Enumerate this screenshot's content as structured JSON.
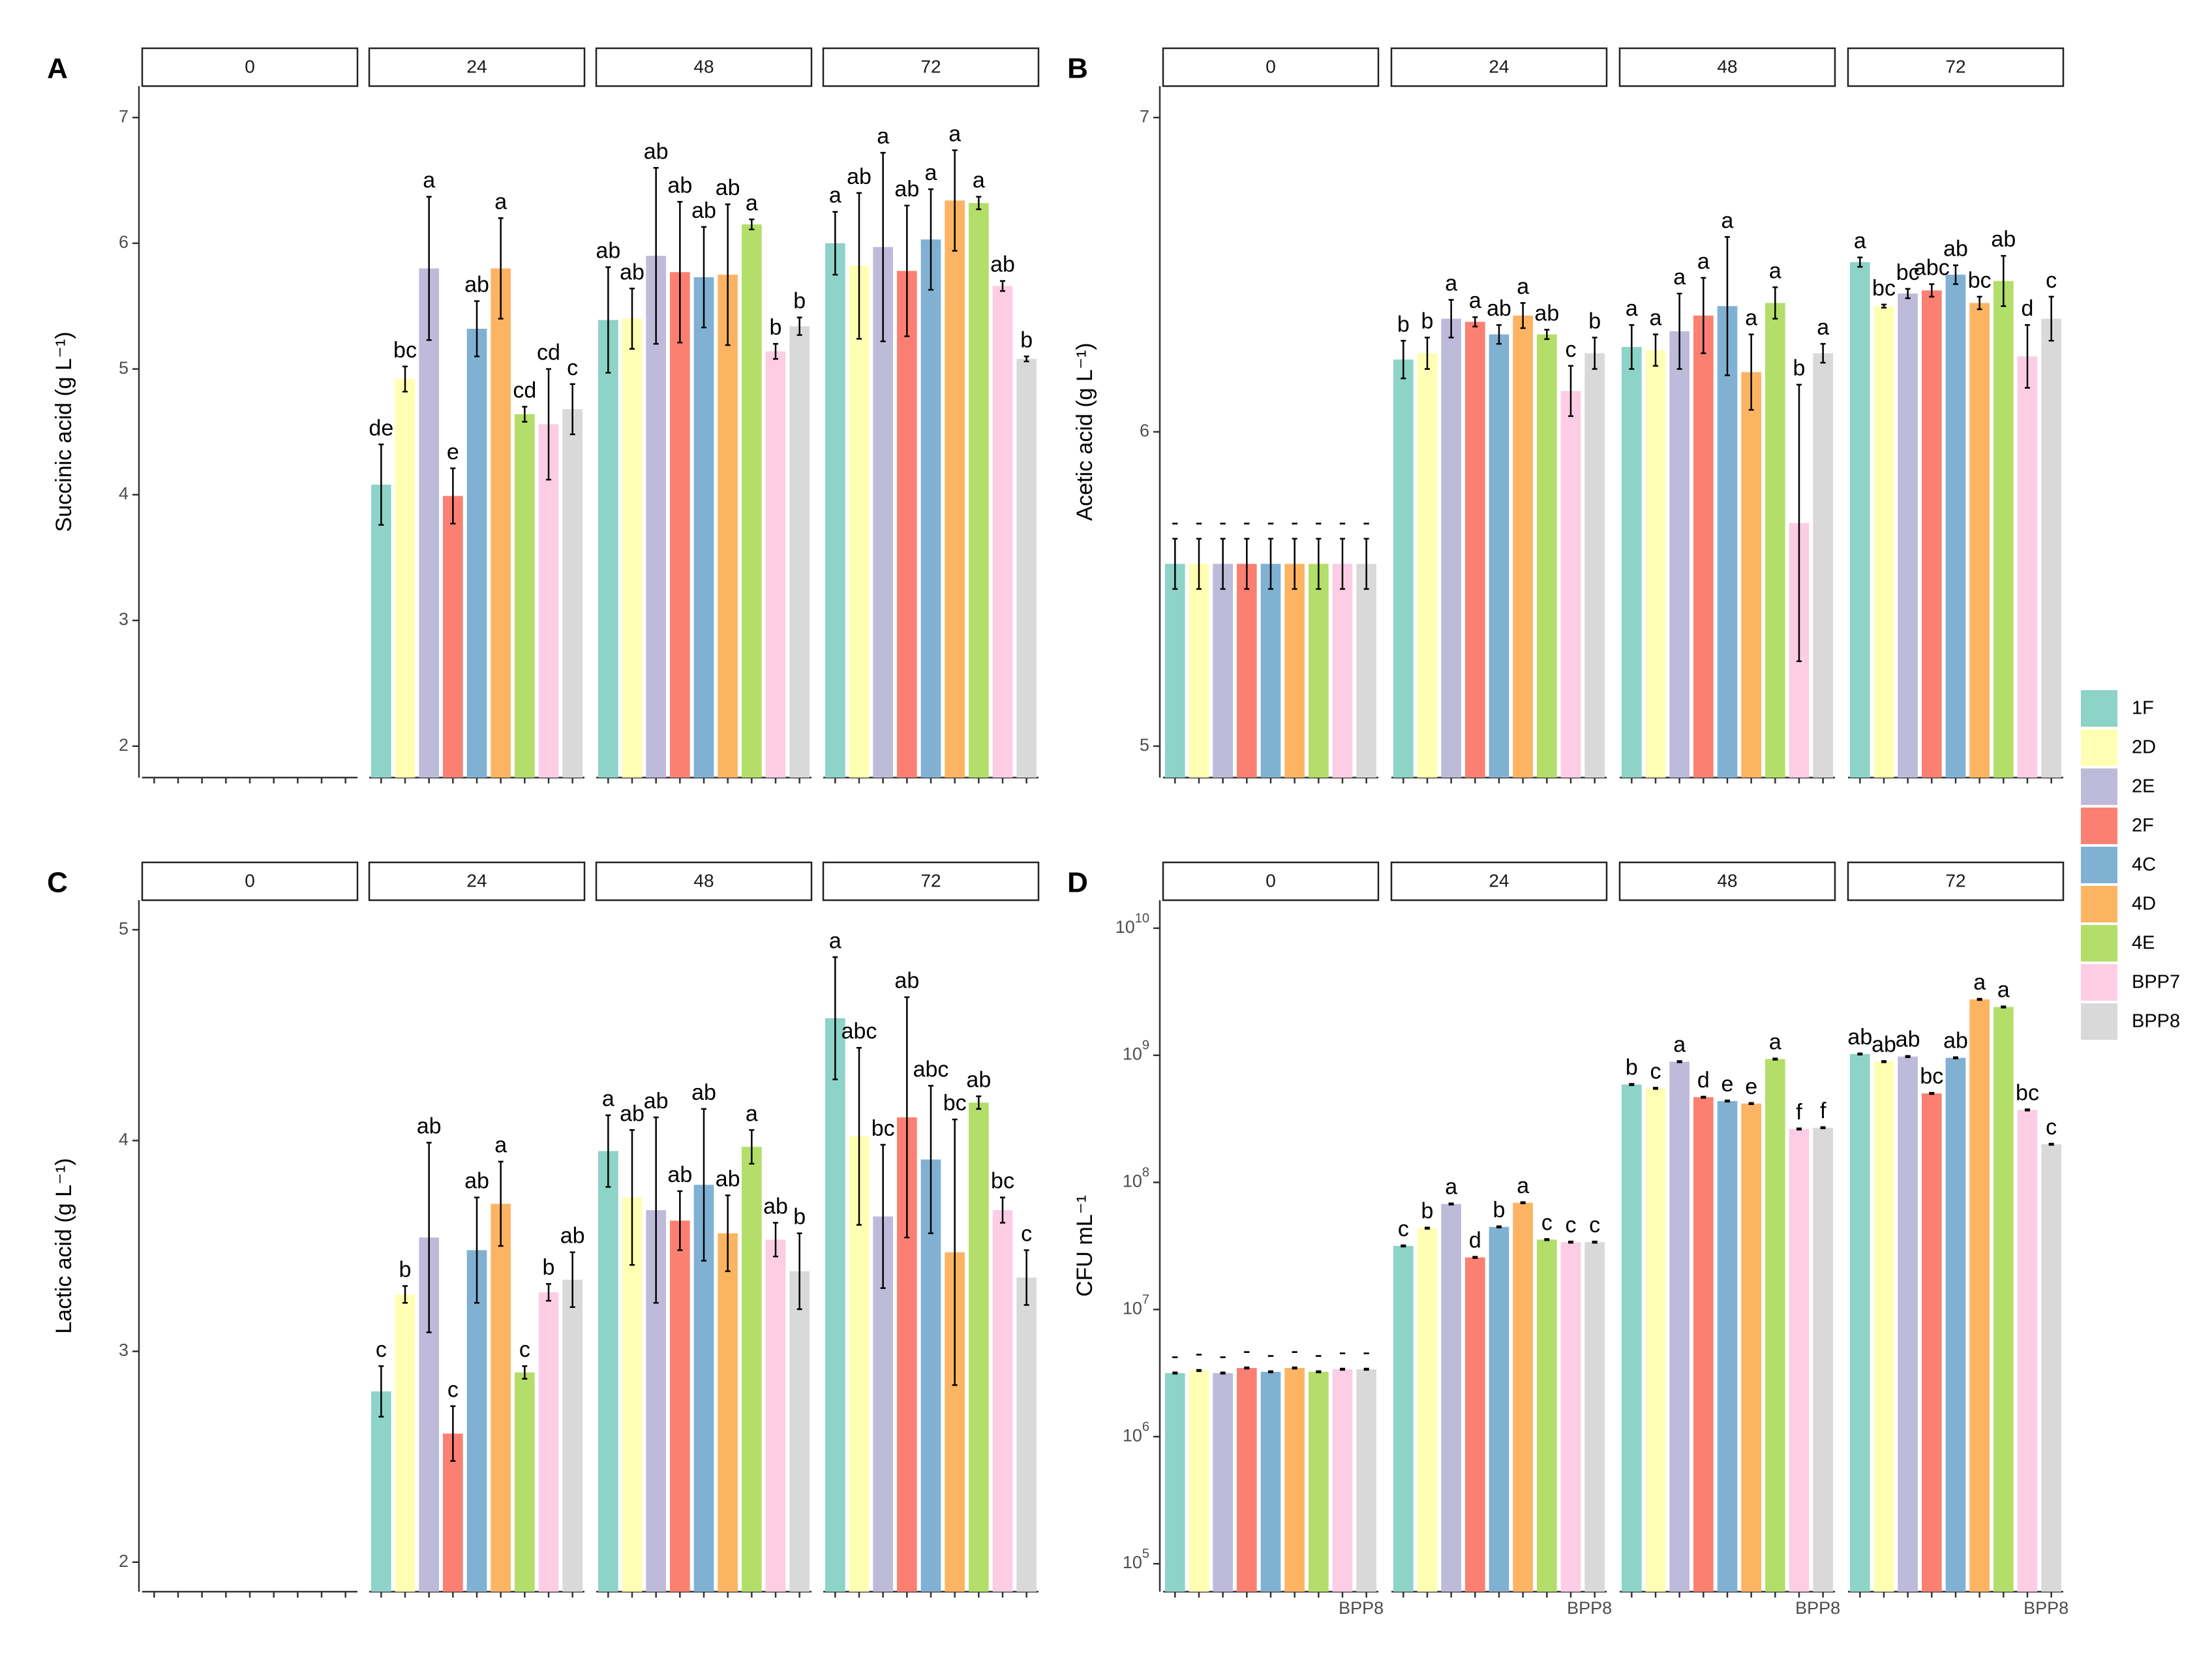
{
  "chart_data": [
    {
      "id": "A",
      "type": "bar",
      "panel_label": "A",
      "ylabel": "Succinic acid (g L⁻¹)",
      "scale": "linear",
      "ylim": [
        1.75,
        7.25
      ],
      "yticks": [
        2,
        3,
        4,
        5,
        6,
        7
      ],
      "ytick_labels": [
        "2",
        "3",
        "4",
        "5",
        "6",
        "7"
      ],
      "facets": [
        "0",
        "24",
        "48",
        "72"
      ],
      "categories": [
        "1F",
        "2D",
        "2E",
        "2F",
        "4C",
        "4D",
        "4E",
        "BPP7",
        "BPP8"
      ],
      "x_labels": [],
      "data": {
        "0": [],
        "24": [
          {
            "v": 4.08,
            "e": 0.32,
            "l": "de"
          },
          {
            "v": 4.92,
            "e": 0.1,
            "l": "bc"
          },
          {
            "v": 5.8,
            "e": 0.57,
            "l": "a"
          },
          {
            "v": 3.99,
            "e": 0.22,
            "l": "e"
          },
          {
            "v": 5.32,
            "e": 0.22,
            "l": "ab"
          },
          {
            "v": 5.8,
            "e": 0.4,
            "l": "a"
          },
          {
            "v": 4.64,
            "e": 0.06,
            "l": "cd"
          },
          {
            "v": 4.56,
            "e": 0.44,
            "l": "cd"
          },
          {
            "v": 4.68,
            "e": 0.2,
            "l": "c"
          }
        ],
        "48": [
          {
            "v": 5.39,
            "e": 0.42,
            "l": "ab"
          },
          {
            "v": 5.4,
            "e": 0.24,
            "l": "ab"
          },
          {
            "v": 5.9,
            "e": 0.7,
            "l": "ab"
          },
          {
            "v": 5.77,
            "e": 0.56,
            "l": "ab"
          },
          {
            "v": 5.73,
            "e": 0.4,
            "l": "ab"
          },
          {
            "v": 5.75,
            "e": 0.56,
            "l": "ab"
          },
          {
            "v": 6.15,
            "e": 0.04,
            "l": "a"
          },
          {
            "v": 5.14,
            "e": 0.06,
            "l": "b"
          },
          {
            "v": 5.34,
            "e": 0.07,
            "l": "b"
          }
        ],
        "72": [
          {
            "v": 6.0,
            "e": 0.25,
            "l": "a"
          },
          {
            "v": 5.82,
            "e": 0.58,
            "l": "ab"
          },
          {
            "v": 5.97,
            "e": 0.75,
            "l": "a"
          },
          {
            "v": 5.78,
            "e": 0.52,
            "l": "ab"
          },
          {
            "v": 6.03,
            "e": 0.4,
            "l": "a"
          },
          {
            "v": 6.34,
            "e": 0.4,
            "l": "a"
          },
          {
            "v": 6.32,
            "e": 0.05,
            "l": "a"
          },
          {
            "v": 5.66,
            "e": 0.04,
            "l": "ab"
          },
          {
            "v": 5.08,
            "e": 0.02,
            "l": "b"
          }
        ]
      }
    },
    {
      "id": "B",
      "type": "bar",
      "panel_label": "B",
      "ylabel": "Acetic acid (g L⁻¹)",
      "scale": "linear",
      "ylim": [
        4.9,
        7.1
      ],
      "yticks": [
        5,
        6,
        7
      ],
      "ytick_labels": [
        "5",
        "6",
        "7"
      ],
      "facets": [
        "0",
        "24",
        "48",
        "72"
      ],
      "categories": [
        "1F",
        "2D",
        "2E",
        "2F",
        "4C",
        "4D",
        "4E",
        "BPP7",
        "BPP8"
      ],
      "x_labels": [],
      "data": {
        "0": [
          {
            "v": 5.58,
            "e": 0.08,
            "l": "-"
          },
          {
            "v": 5.58,
            "e": 0.08,
            "l": "-"
          },
          {
            "v": 5.58,
            "e": 0.08,
            "l": "-"
          },
          {
            "v": 5.58,
            "e": 0.08,
            "l": "-"
          },
          {
            "v": 5.58,
            "e": 0.08,
            "l": "-"
          },
          {
            "v": 5.58,
            "e": 0.08,
            "l": "-"
          },
          {
            "v": 5.58,
            "e": 0.08,
            "l": "-"
          },
          {
            "v": 5.58,
            "e": 0.08,
            "l": "-"
          },
          {
            "v": 5.58,
            "e": 0.08,
            "l": "-"
          }
        ],
        "24": [
          {
            "v": 6.23,
            "e": 0.06,
            "l": "b"
          },
          {
            "v": 6.25,
            "e": 0.05,
            "l": "b"
          },
          {
            "v": 6.36,
            "e": 0.06,
            "l": "a"
          },
          {
            "v": 6.35,
            "e": 0.015,
            "l": "a"
          },
          {
            "v": 6.31,
            "e": 0.03,
            "l": "ab"
          },
          {
            "v": 6.37,
            "e": 0.04,
            "l": "a"
          },
          {
            "v": 6.31,
            "e": 0.015,
            "l": "ab"
          },
          {
            "v": 6.13,
            "e": 0.08,
            "l": "c"
          },
          {
            "v": 6.25,
            "e": 0.05,
            "l": "b"
          }
        ],
        "48": [
          {
            "v": 6.27,
            "e": 0.07,
            "l": "a"
          },
          {
            "v": 6.26,
            "e": 0.05,
            "l": "a"
          },
          {
            "v": 6.32,
            "e": 0.12,
            "l": "a"
          },
          {
            "v": 6.37,
            "e": 0.12,
            "l": "a"
          },
          {
            "v": 6.4,
            "e": 0.22,
            "l": "a"
          },
          {
            "v": 6.19,
            "e": 0.12,
            "l": "a"
          },
          {
            "v": 6.41,
            "e": 0.05,
            "l": "a"
          },
          {
            "v": 5.71,
            "e": 0.44,
            "l": "b"
          },
          {
            "v": 6.25,
            "e": 0.03,
            "l": "a"
          }
        ],
        "72": [
          {
            "v": 6.54,
            "e": 0.015,
            "l": "a"
          },
          {
            "v": 6.4,
            "e": 0.005,
            "l": "bc"
          },
          {
            "v": 6.44,
            "e": 0.015,
            "l": "bc"
          },
          {
            "v": 6.45,
            "e": 0.02,
            "l": "abc"
          },
          {
            "v": 6.5,
            "e": 0.03,
            "l": "ab"
          },
          {
            "v": 6.41,
            "e": 0.02,
            "l": "bc"
          },
          {
            "v": 6.48,
            "e": 0.08,
            "l": "ab"
          },
          {
            "v": 6.24,
            "e": 0.1,
            "l": "d"
          },
          {
            "v": 6.36,
            "e": 0.07,
            "l": "c"
          }
        ]
      }
    },
    {
      "id": "C",
      "type": "bar",
      "panel_label": "C",
      "ylabel": "Lactic acid (g L⁻¹)",
      "scale": "linear",
      "ylim": [
        1.86,
        5.14
      ],
      "yticks": [
        2,
        3,
        4,
        5
      ],
      "ytick_labels": [
        "2",
        "3",
        "4",
        "5"
      ],
      "facets": [
        "0",
        "24",
        "48",
        "72"
      ],
      "categories": [
        "1F",
        "2D",
        "2E",
        "2F",
        "4C",
        "4D",
        "4E",
        "BPP7",
        "BPP8"
      ],
      "x_labels": [],
      "data": {
        "0": [],
        "24": [
          {
            "v": 2.81,
            "e": 0.12,
            "l": "c"
          },
          {
            "v": 3.27,
            "e": 0.04,
            "l": "b"
          },
          {
            "v": 3.54,
            "e": 0.45,
            "l": "ab"
          },
          {
            "v": 2.61,
            "e": 0.13,
            "l": "c"
          },
          {
            "v": 3.48,
            "e": 0.25,
            "l": "ab"
          },
          {
            "v": 3.7,
            "e": 0.2,
            "l": "a"
          },
          {
            "v": 2.9,
            "e": 0.03,
            "l": "c"
          },
          {
            "v": 3.28,
            "e": 0.04,
            "l": "b"
          },
          {
            "v": 3.34,
            "e": 0.13,
            "l": "ab"
          }
        ],
        "48": [
          {
            "v": 3.95,
            "e": 0.17,
            "l": "a"
          },
          {
            "v": 3.73,
            "e": 0.32,
            "l": "ab"
          },
          {
            "v": 3.67,
            "e": 0.44,
            "l": "ab"
          },
          {
            "v": 3.62,
            "e": 0.14,
            "l": "ab"
          },
          {
            "v": 3.79,
            "e": 0.36,
            "l": "ab"
          },
          {
            "v": 3.56,
            "e": 0.18,
            "l": "ab"
          },
          {
            "v": 3.97,
            "e": 0.08,
            "l": "a"
          },
          {
            "v": 3.53,
            "e": 0.08,
            "l": "ab"
          },
          {
            "v": 3.38,
            "e": 0.18,
            "l": "b"
          }
        ],
        "72": [
          {
            "v": 4.58,
            "e": 0.29,
            "l": "a"
          },
          {
            "v": 4.02,
            "e": 0.42,
            "l": "abc"
          },
          {
            "v": 3.64,
            "e": 0.34,
            "l": "bc"
          },
          {
            "v": 4.11,
            "e": 0.57,
            "l": "ab"
          },
          {
            "v": 3.91,
            "e": 0.35,
            "l": "abc"
          },
          {
            "v": 3.47,
            "e": 0.63,
            "l": "bc"
          },
          {
            "v": 4.18,
            "e": 0.03,
            "l": "ab"
          },
          {
            "v": 3.67,
            "e": 0.06,
            "l": "bc"
          },
          {
            "v": 3.35,
            "e": 0.13,
            "l": "c"
          }
        ]
      }
    },
    {
      "id": "D",
      "type": "bar",
      "panel_label": "D",
      "ylabel": "CFU mL⁻¹",
      "scale": "log10",
      "ylim": [
        4.78,
        10.22
      ],
      "yticks": [
        5,
        6,
        7,
        8,
        9,
        10
      ],
      "ytick_labels": [
        "5",
        "6",
        "7",
        "8",
        "9",
        "10"
      ],
      "facets": [
        "0",
        "24",
        "48",
        "72"
      ],
      "categories": [
        "1F",
        "2D",
        "2E",
        "2F",
        "4C",
        "4D",
        "4E",
        "BPP7",
        "BPP8"
      ],
      "x_labels": [
        "",
        "",
        "",
        "",
        "",
        "",
        "",
        "",
        "BPP8"
      ],
      "data": {
        "0": [
          {
            "v": 6.5,
            "e": 0.005,
            "l": "-"
          },
          {
            "v": 6.52,
            "e": 0.005,
            "l": "-"
          },
          {
            "v": 6.5,
            "e": 0.005,
            "l": "-"
          },
          {
            "v": 6.54,
            "e": 0.005,
            "l": "-"
          },
          {
            "v": 6.51,
            "e": 0.005,
            "l": "-"
          },
          {
            "v": 6.54,
            "e": 0.005,
            "l": "-"
          },
          {
            "v": 6.51,
            "e": 0.005,
            "l": "-"
          },
          {
            "v": 6.53,
            "e": 0.005,
            "l": "-"
          },
          {
            "v": 6.53,
            "e": 0.005,
            "l": "-"
          }
        ],
        "24": [
          {
            "v": 7.5,
            "e": 0.005,
            "l": "c"
          },
          {
            "v": 7.64,
            "e": 0.005,
            "l": "b"
          },
          {
            "v": 7.83,
            "e": 0.005,
            "l": "a"
          },
          {
            "v": 7.41,
            "e": 0.005,
            "l": "d"
          },
          {
            "v": 7.65,
            "e": 0.005,
            "l": "b"
          },
          {
            "v": 7.84,
            "e": 0.005,
            "l": "a"
          },
          {
            "v": 7.55,
            "e": 0.005,
            "l": "c"
          },
          {
            "v": 7.53,
            "e": 0.005,
            "l": "c"
          },
          {
            "v": 7.53,
            "e": 0.005,
            "l": "c"
          }
        ],
        "48": [
          {
            "v": 8.77,
            "e": 0.005,
            "l": "b"
          },
          {
            "v": 8.74,
            "e": 0.005,
            "l": "c"
          },
          {
            "v": 8.95,
            "e": 0.005,
            "l": "a"
          },
          {
            "v": 8.67,
            "e": 0.005,
            "l": "d"
          },
          {
            "v": 8.64,
            "e": 0.005,
            "l": "e"
          },
          {
            "v": 8.62,
            "e": 0.005,
            "l": "e"
          },
          {
            "v": 8.97,
            "e": 0.005,
            "l": "a"
          },
          {
            "v": 8.42,
            "e": 0.005,
            "l": "f"
          },
          {
            "v": 8.43,
            "e": 0.005,
            "l": "f"
          }
        ],
        "72": [
          {
            "v": 9.01,
            "e": 0.005,
            "l": "ab"
          },
          {
            "v": 8.95,
            "e": 0.005,
            "l": "ab"
          },
          {
            "v": 8.99,
            "e": 0.005,
            "l": "ab"
          },
          {
            "v": 8.7,
            "e": 0.005,
            "l": "bc"
          },
          {
            "v": 8.98,
            "e": 0.005,
            "l": "ab"
          },
          {
            "v": 9.44,
            "e": 0.005,
            "l": "a"
          },
          {
            "v": 9.38,
            "e": 0.005,
            "l": "a"
          },
          {
            "v": 8.57,
            "e": 0.005,
            "l": "bc"
          },
          {
            "v": 8.3,
            "e": 0.005,
            "l": "c"
          }
        ]
      }
    }
  ],
  "legend": {
    "placement": "right",
    "items": [
      {
        "label": "1F",
        "color": "#8DD3C7"
      },
      {
        "label": "2D",
        "color": "#FFFFB3"
      },
      {
        "label": "2E",
        "color": "#BEBADA"
      },
      {
        "label": "2F",
        "color": "#FB8072"
      },
      {
        "label": "4C",
        "color": "#80B1D3"
      },
      {
        "label": "4D",
        "color": "#FDB462"
      },
      {
        "label": "4E",
        "color": "#B3DE69"
      },
      {
        "label": "BPP7",
        "color": "#FCCDE5"
      },
      {
        "label": "BPP8",
        "color": "#D9D9D9"
      }
    ]
  }
}
